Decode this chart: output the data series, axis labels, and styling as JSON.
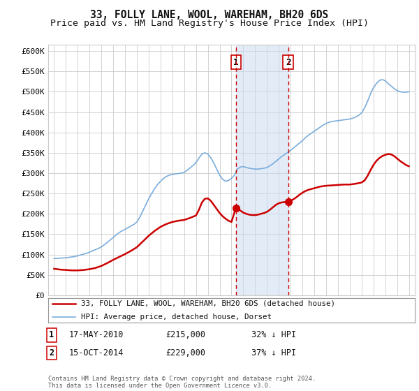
{
  "title": "33, FOLLY LANE, WOOL, WAREHAM, BH20 6DS",
  "subtitle": "Price paid vs. HM Land Registry's House Price Index (HPI)",
  "ylabel_ticks": [
    "£0",
    "£50K",
    "£100K",
    "£150K",
    "£200K",
    "£250K",
    "£300K",
    "£350K",
    "£400K",
    "£450K",
    "£500K",
    "£550K",
    "£600K"
  ],
  "ytick_values": [
    0,
    50000,
    100000,
    150000,
    200000,
    250000,
    300000,
    350000,
    400000,
    450000,
    500000,
    550000,
    600000
  ],
  "ylim": [
    0,
    615000
  ],
  "xlim": [
    1994.5,
    2025.5
  ],
  "transactions": [
    {
      "date_x": 2010.37,
      "price": 215000,
      "label": "1"
    },
    {
      "date_x": 2014.79,
      "price": 229000,
      "label": "2"
    }
  ],
  "shaded_region": [
    2010.37,
    2014.79
  ],
  "hpi_years": [
    1995.0,
    1995.25,
    1995.5,
    1995.75,
    1996.0,
    1996.25,
    1996.5,
    1996.75,
    1997.0,
    1997.25,
    1997.5,
    1997.75,
    1998.0,
    1998.25,
    1998.5,
    1998.75,
    1999.0,
    1999.25,
    1999.5,
    1999.75,
    2000.0,
    2000.25,
    2000.5,
    2000.75,
    2001.0,
    2001.25,
    2001.5,
    2001.75,
    2002.0,
    2002.25,
    2002.5,
    2002.75,
    2003.0,
    2003.25,
    2003.5,
    2003.75,
    2004.0,
    2004.25,
    2004.5,
    2004.75,
    2005.0,
    2005.25,
    2005.5,
    2005.75,
    2006.0,
    2006.25,
    2006.5,
    2006.75,
    2007.0,
    2007.25,
    2007.5,
    2007.75,
    2008.0,
    2008.25,
    2008.5,
    2008.75,
    2009.0,
    2009.25,
    2009.5,
    2009.75,
    2010.0,
    2010.25,
    2010.5,
    2010.75,
    2011.0,
    2011.25,
    2011.5,
    2011.75,
    2012.0,
    2012.25,
    2012.5,
    2012.75,
    2013.0,
    2013.25,
    2013.5,
    2013.75,
    2014.0,
    2014.25,
    2014.5,
    2014.75,
    2015.0,
    2015.25,
    2015.5,
    2015.75,
    2016.0,
    2016.25,
    2016.5,
    2016.75,
    2017.0,
    2017.25,
    2017.5,
    2017.75,
    2018.0,
    2018.25,
    2018.5,
    2018.75,
    2019.0,
    2019.25,
    2019.5,
    2019.75,
    2020.0,
    2020.25,
    2020.5,
    2020.75,
    2021.0,
    2021.25,
    2021.5,
    2021.75,
    2022.0,
    2022.25,
    2022.5,
    2022.75,
    2023.0,
    2023.25,
    2023.5,
    2023.75,
    2024.0,
    2024.25,
    2024.5,
    2024.75,
    2025.0
  ],
  "hpi_values": [
    90000,
    90500,
    91000,
    91500,
    92000,
    93000,
    94000,
    95000,
    97000,
    99000,
    101000,
    103000,
    106000,
    109000,
    112000,
    115000,
    119000,
    124000,
    130000,
    136000,
    142000,
    148000,
    154000,
    158000,
    162000,
    166000,
    170000,
    174000,
    180000,
    192000,
    207000,
    222000,
    237000,
    250000,
    262000,
    272000,
    280000,
    287000,
    292000,
    295000,
    297000,
    298000,
    299000,
    300000,
    302000,
    307000,
    313000,
    319000,
    326000,
    337000,
    347000,
    350000,
    347000,
    338000,
    325000,
    310000,
    295000,
    285000,
    280000,
    282000,
    287000,
    295000,
    310000,
    315000,
    316000,
    314000,
    312000,
    311000,
    310000,
    310000,
    311000,
    312000,
    314000,
    318000,
    323000,
    329000,
    335000,
    341000,
    346000,
    351000,
    356000,
    362000,
    368000,
    374000,
    380000,
    387000,
    393000,
    398000,
    403000,
    408000,
    413000,
    418000,
    422000,
    425000,
    427000,
    428000,
    429000,
    430000,
    431000,
    432000,
    433000,
    435000,
    438000,
    442000,
    448000,
    460000,
    476000,
    495000,
    510000,
    520000,
    528000,
    530000,
    527000,
    520000,
    514000,
    508000,
    503000,
    500000,
    499000,
    499000,
    500000
  ],
  "red_years": [
    1995.0,
    1995.5,
    1996.0,
    1996.5,
    1997.0,
    1997.5,
    1998.0,
    1998.5,
    1999.0,
    1999.5,
    2000.0,
    2000.5,
    2001.0,
    2001.5,
    2002.0,
    2002.5,
    2003.0,
    2003.5,
    2004.0,
    2004.5,
    2005.0,
    2005.5,
    2006.0,
    2006.5,
    2007.0,
    2007.25,
    2007.5,
    2007.75,
    2008.0,
    2008.25,
    2008.5,
    2008.75,
    2009.0,
    2009.25,
    2009.5,
    2009.75,
    2010.0,
    2010.37,
    2010.5,
    2010.75,
    2011.0,
    2011.25,
    2011.5,
    2011.75,
    2012.0,
    2012.25,
    2012.5,
    2012.75,
    2013.0,
    2013.25,
    2013.5,
    2013.75,
    2014.0,
    2014.25,
    2014.5,
    2014.79,
    2015.0,
    2015.25,
    2015.5,
    2015.75,
    2016.0,
    2016.25,
    2016.5,
    2016.75,
    2017.0,
    2017.25,
    2017.5,
    2017.75,
    2018.0,
    2018.5,
    2019.0,
    2019.5,
    2020.0,
    2020.5,
    2021.0,
    2021.25,
    2021.5,
    2021.75,
    2022.0,
    2022.25,
    2022.5,
    2022.75,
    2023.0,
    2023.25,
    2023.5,
    2023.75,
    2024.0,
    2024.25,
    2024.5,
    2024.75,
    2025.0
  ],
  "red_values": [
    65000,
    63000,
    62000,
    61000,
    61000,
    62000,
    64000,
    67000,
    72000,
    79000,
    87000,
    94000,
    101000,
    109000,
    118000,
    132000,
    146000,
    158000,
    168000,
    175000,
    180000,
    183000,
    185000,
    190000,
    196000,
    210000,
    228000,
    237000,
    238000,
    232000,
    222000,
    212000,
    202000,
    194000,
    188000,
    183000,
    180000,
    215000,
    213000,
    208000,
    203000,
    200000,
    198000,
    197000,
    197000,
    198000,
    200000,
    202000,
    205000,
    210000,
    216000,
    222000,
    226000,
    228000,
    229000,
    229000,
    232000,
    236000,
    241000,
    247000,
    252000,
    256000,
    259000,
    261000,
    263000,
    265000,
    267000,
    268000,
    269000,
    270000,
    271000,
    272000,
    272000,
    274000,
    277000,
    282000,
    293000,
    307000,
    320000,
    330000,
    337000,
    342000,
    345000,
    347000,
    346000,
    342000,
    336000,
    330000,
    325000,
    320000,
    317000
  ],
  "legend_entries": [
    {
      "label": "33, FOLLY LANE, WOOL, WAREHAM, BH20 6DS (detached house)",
      "color": "#cc0000",
      "lw": 1.8
    },
    {
      "label": "HPI: Average price, detached house, Dorset",
      "color": "#7aaddb",
      "lw": 1.2
    }
  ],
  "table_rows": [
    {
      "num": "1",
      "date": "17-MAY-2010",
      "price": "£215,000",
      "pct": "32% ↓ HPI"
    },
    {
      "num": "2",
      "date": "15-OCT-2014",
      "price": "£229,000",
      "pct": "37% ↓ HPI"
    }
  ],
  "footnote": "Contains HM Land Registry data © Crown copyright and database right 2024.\nThis data is licensed under the Open Government Licence v3.0.",
  "bg_color": "#ffffff",
  "grid_color": "#cccccc",
  "title_fontsize": 10.5,
  "subtitle_fontsize": 9.5,
  "hpi_color": "#7aaddb",
  "red_color": "#cc0000",
  "shade_color": "#c8d8f0",
  "shade_alpha": 0.5
}
